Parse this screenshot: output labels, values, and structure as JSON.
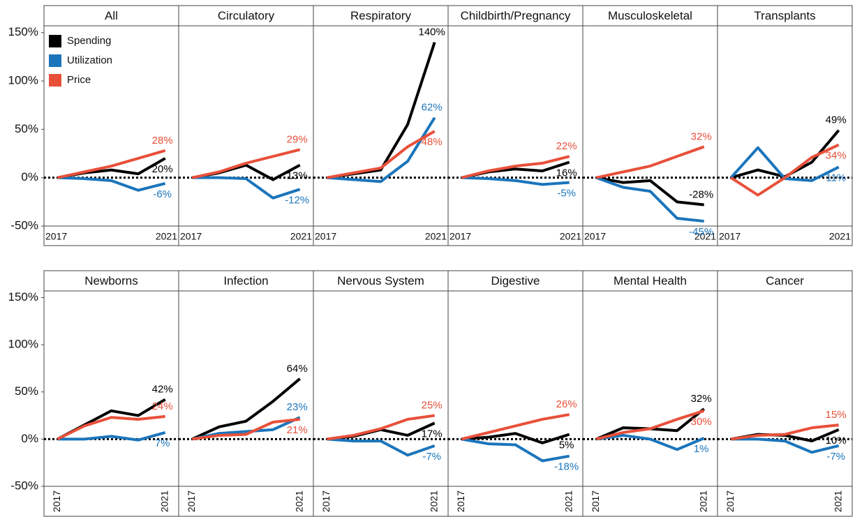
{
  "chart_data": [
    {
      "type": "line",
      "title": "All",
      "x": [
        2017,
        2018,
        2019,
        2020,
        2021
      ],
      "xlim": [
        2016.5,
        2021.5
      ],
      "xticks": [
        2017,
        2021
      ],
      "ylim": [
        -50,
        157
      ],
      "yticks": [
        {
          "value": -50,
          "label": "-50%"
        },
        {
          "value": 0,
          "label": "0%"
        },
        {
          "value": 50,
          "label": "50%"
        },
        {
          "value": 100,
          "label": "100%"
        },
        {
          "value": 150,
          "label": "150%"
        }
      ],
      "legend": "upper left",
      "series": [
        {
          "name": "Spending",
          "color": "#000000",
          "values": [
            0,
            5,
            8,
            4,
            20
          ],
          "value_labels": [
            null,
            null,
            null,
            null,
            "20%"
          ]
        },
        {
          "name": "Utilization",
          "color": "#1b75bb",
          "values": [
            0,
            -1,
            -3,
            -13,
            -6
          ],
          "value_labels": [
            null,
            null,
            null,
            null,
            "-6%"
          ]
        },
        {
          "name": "Price",
          "color": "#e8503a",
          "values": [
            0,
            6,
            12,
            20,
            28
          ],
          "value_labels": [
            null,
            null,
            null,
            null,
            "28%"
          ]
        }
      ]
    },
    {
      "type": "line",
      "title": "Circulatory",
      "x": [
        2017,
        2018,
        2019,
        2020,
        2021
      ],
      "xlim": [
        2016.5,
        2021.5
      ],
      "xticks": [
        2017,
        2021
      ],
      "ylim": [
        -50,
        157
      ],
      "series": [
        {
          "color": "#000000",
          "values": [
            0,
            5,
            13,
            -2,
            13
          ],
          "value_labels": [
            null,
            null,
            null,
            null,
            "13%"
          ]
        },
        {
          "color": "#1b75bb",
          "values": [
            0,
            0,
            -1,
            -21,
            -12
          ],
          "value_labels": [
            null,
            null,
            null,
            null,
            "-12%"
          ]
        },
        {
          "color": "#e8503a",
          "values": [
            0,
            6,
            15,
            22,
            29
          ],
          "value_labels": [
            null,
            null,
            null,
            null,
            "29%"
          ]
        }
      ]
    },
    {
      "type": "line",
      "title": "Respiratory",
      "x": [
        2017,
        2018,
        2019,
        2020,
        2021
      ],
      "xlim": [
        2016.5,
        2021.5
      ],
      "xticks": [
        2017,
        2021
      ],
      "ylim": [
        -50,
        157
      ],
      "series": [
        {
          "color": "#000000",
          "values": [
            0,
            4,
            8,
            55,
            140
          ],
          "value_labels": [
            null,
            null,
            null,
            null,
            "140%"
          ]
        },
        {
          "color": "#1b75bb",
          "values": [
            0,
            -2,
            -4,
            17,
            62
          ],
          "value_labels": [
            null,
            null,
            null,
            null,
            "62%"
          ]
        },
        {
          "color": "#e8503a",
          "values": [
            0,
            5,
            10,
            32,
            48
          ],
          "value_labels": [
            null,
            null,
            null,
            null,
            "48%"
          ]
        }
      ]
    },
    {
      "type": "line",
      "title": "Childbirth/Pregnancy",
      "x": [
        2017,
        2018,
        2019,
        2020,
        2021
      ],
      "xlim": [
        2016.5,
        2021.5
      ],
      "xticks": [
        2017,
        2021
      ],
      "ylim": [
        -50,
        157
      ],
      "series": [
        {
          "color": "#000000",
          "values": [
            0,
            6,
            9,
            7,
            16
          ],
          "value_labels": [
            null,
            null,
            null,
            null,
            "16%"
          ]
        },
        {
          "color": "#1b75bb",
          "values": [
            0,
            -1,
            -3,
            -7,
            -5
          ],
          "value_labels": [
            null,
            null,
            null,
            null,
            "-5%"
          ]
        },
        {
          "color": "#e8503a",
          "values": [
            0,
            7,
            12,
            15,
            22
          ],
          "value_labels": [
            null,
            null,
            null,
            null,
            "22%"
          ]
        }
      ]
    },
    {
      "type": "line",
      "title": "Musculoskeletal",
      "x": [
        2017,
        2018,
        2019,
        2020,
        2021
      ],
      "xlim": [
        2016.5,
        2021.5
      ],
      "xticks": [
        2017,
        2021
      ],
      "ylim": [
        -50,
        157
      ],
      "series": [
        {
          "color": "#000000",
          "values": [
            0,
            -5,
            -3,
            -25,
            -28
          ],
          "value_labels": [
            null,
            null,
            null,
            null,
            "-28%"
          ]
        },
        {
          "color": "#1b75bb",
          "values": [
            0,
            -10,
            -14,
            -42,
            -45
          ],
          "value_labels": [
            null,
            null,
            null,
            null,
            "-45%"
          ]
        },
        {
          "color": "#e8503a",
          "values": [
            0,
            6,
            12,
            22,
            32
          ],
          "value_labels": [
            null,
            null,
            null,
            null,
            "32%"
          ]
        }
      ]
    },
    {
      "type": "line",
      "title": "Transplants",
      "x": [
        2017,
        2018,
        2019,
        2020,
        2021
      ],
      "xlim": [
        2016.5,
        2021.5
      ],
      "xticks": [
        2017,
        2021
      ],
      "ylim": [
        -50,
        157
      ],
      "series": [
        {
          "color": "#000000",
          "values": [
            0,
            8,
            1,
            16,
            49
          ],
          "value_labels": [
            null,
            null,
            null,
            null,
            "49%"
          ]
        },
        {
          "color": "#1b75bb",
          "values": [
            0,
            31,
            -1,
            -3,
            11
          ],
          "value_labels": [
            null,
            null,
            null,
            null,
            "11%"
          ]
        },
        {
          "color": "#e8503a",
          "values": [
            0,
            -18,
            0,
            21,
            34
          ],
          "value_labels": [
            null,
            null,
            null,
            null,
            "34%"
          ]
        }
      ]
    },
    {
      "type": "line",
      "title": "Newborns",
      "x": [
        2017,
        2018,
        2019,
        2020,
        2021
      ],
      "xlim": [
        2016.5,
        2021.5
      ],
      "xticks": [
        2017,
        2021
      ],
      "xtick_rotation": 90,
      "ylim": [
        -50,
        157
      ],
      "yticks": [
        {
          "value": -50,
          "label": "-50%"
        },
        {
          "value": 0,
          "label": "0%"
        },
        {
          "value": 50,
          "label": "50%"
        },
        {
          "value": 100,
          "label": "100%"
        },
        {
          "value": 150,
          "label": "150%"
        }
      ],
      "series": [
        {
          "color": "#000000",
          "values": [
            0,
            15,
            30,
            25,
            42
          ],
          "value_labels": [
            null,
            null,
            null,
            null,
            "42%"
          ]
        },
        {
          "color": "#1b75bb",
          "values": [
            0,
            0,
            3,
            -1,
            7
          ],
          "value_labels": [
            null,
            null,
            null,
            null,
            "7%"
          ]
        },
        {
          "color": "#e8503a",
          "values": [
            0,
            14,
            23,
            21,
            24
          ],
          "value_labels": [
            null,
            null,
            null,
            null,
            "24%"
          ]
        }
      ]
    },
    {
      "type": "line",
      "title": "Infection",
      "x": [
        2017,
        2018,
        2019,
        2020,
        2021
      ],
      "xlim": [
        2016.5,
        2021.5
      ],
      "xticks": [
        2017,
        2021
      ],
      "xtick_rotation": 90,
      "ylim": [
        -50,
        157
      ],
      "series": [
        {
          "color": "#000000",
          "values": [
            0,
            13,
            19,
            40,
            64
          ],
          "value_labels": [
            null,
            null,
            null,
            null,
            "64%"
          ]
        },
        {
          "color": "#1b75bb",
          "values": [
            0,
            6,
            8,
            10,
            23
          ],
          "value_labels": [
            null,
            null,
            null,
            null,
            "23%"
          ]
        },
        {
          "color": "#e8503a",
          "values": [
            0,
            4,
            5,
            18,
            21
          ],
          "value_labels": [
            null,
            null,
            null,
            null,
            "21%"
          ]
        }
      ]
    },
    {
      "type": "line",
      "title": "Nervous System",
      "x": [
        2017,
        2018,
        2019,
        2020,
        2021
      ],
      "xlim": [
        2016.5,
        2021.5
      ],
      "xticks": [
        2017,
        2021
      ],
      "xtick_rotation": 90,
      "ylim": [
        -50,
        157
      ],
      "series": [
        {
          "color": "#000000",
          "values": [
            0,
            3,
            10,
            4,
            17
          ],
          "value_labels": [
            null,
            null,
            null,
            null,
            "17%"
          ]
        },
        {
          "color": "#1b75bb",
          "values": [
            0,
            -2,
            -2,
            -17,
            -7
          ],
          "value_labels": [
            null,
            null,
            null,
            null,
            "-7%"
          ]
        },
        {
          "color": "#e8503a",
          "values": [
            0,
            4,
            11,
            21,
            25
          ],
          "value_labels": [
            null,
            null,
            null,
            null,
            "25%"
          ]
        }
      ]
    },
    {
      "type": "line",
      "title": "Digestive",
      "x": [
        2017,
        2018,
        2019,
        2020,
        2021
      ],
      "xlim": [
        2016.5,
        2021.5
      ],
      "xticks": [
        2017,
        2021
      ],
      "xtick_rotation": 90,
      "ylim": [
        -50,
        157
      ],
      "series": [
        {
          "color": "#000000",
          "values": [
            0,
            2,
            6,
            -4,
            5
          ],
          "value_labels": [
            null,
            null,
            null,
            null,
            "5%"
          ]
        },
        {
          "color": "#1b75bb",
          "values": [
            0,
            -5,
            -6,
            -23,
            -18
          ],
          "value_labels": [
            null,
            null,
            null,
            null,
            "-18%"
          ]
        },
        {
          "color": "#e8503a",
          "values": [
            0,
            7,
            14,
            21,
            26
          ],
          "value_labels": [
            null,
            null,
            null,
            null,
            "26%"
          ]
        }
      ]
    },
    {
      "type": "line",
      "title": "Mental Health",
      "x": [
        2017,
        2018,
        2019,
        2020,
        2021
      ],
      "xlim": [
        2016.5,
        2021.5
      ],
      "xticks": [
        2017,
        2021
      ],
      "xtick_rotation": 90,
      "ylim": [
        -50,
        157
      ],
      "series": [
        {
          "color": "#000000",
          "values": [
            0,
            12,
            11,
            9,
            32
          ],
          "value_labels": [
            null,
            null,
            null,
            null,
            "32%"
          ]
        },
        {
          "color": "#1b75bb",
          "values": [
            0,
            4,
            0,
            -11,
            1
          ],
          "value_labels": [
            null,
            null,
            null,
            null,
            "1%"
          ]
        },
        {
          "color": "#e8503a",
          "values": [
            0,
            7,
            11,
            21,
            30
          ],
          "value_labels": [
            null,
            null,
            null,
            null,
            "30%"
          ]
        }
      ]
    },
    {
      "type": "line",
      "title": "Cancer",
      "x": [
        2017,
        2018,
        2019,
        2020,
        2021
      ],
      "xlim": [
        2016.5,
        2021.5
      ],
      "xticks": [
        2017,
        2021
      ],
      "xtick_rotation": 90,
      "ylim": [
        -50,
        157
      ],
      "series": [
        {
          "color": "#000000",
          "values": [
            0,
            5,
            4,
            -2,
            10
          ],
          "value_labels": [
            null,
            null,
            null,
            null,
            "10%"
          ]
        },
        {
          "color": "#1b75bb",
          "values": [
            0,
            0,
            -2,
            -14,
            -7
          ],
          "value_labels": [
            null,
            null,
            null,
            null,
            "-7%"
          ]
        },
        {
          "color": "#e8503a",
          "values": [
            0,
            4,
            5,
            12,
            15
          ],
          "value_labels": [
            null,
            null,
            null,
            null,
            "15%"
          ]
        }
      ]
    }
  ]
}
